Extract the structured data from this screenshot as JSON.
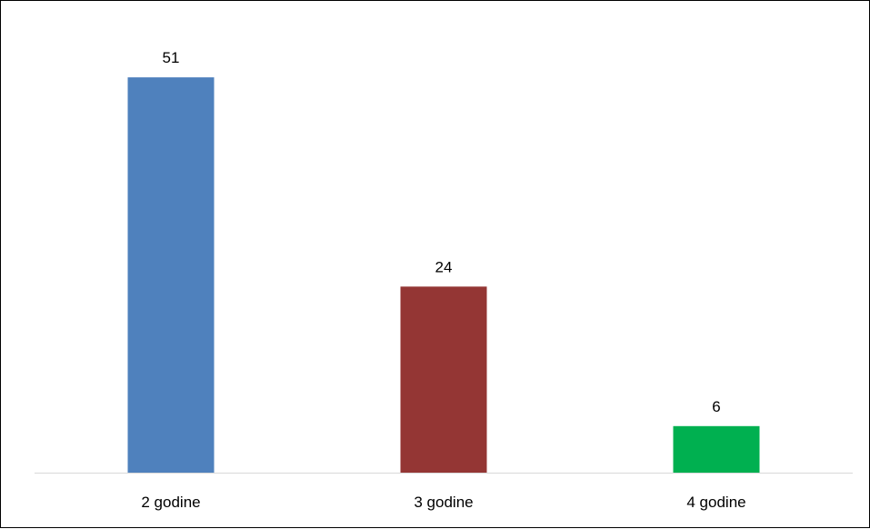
{
  "chart_data": {
    "type": "bar",
    "title": "",
    "xlabel": "",
    "ylabel": "",
    "categories": [
      "2 godine",
      "3 godine",
      "4 godine"
    ],
    "values": [
      51,
      24,
      6
    ],
    "ylim": [
      0,
      55
    ],
    "colors": [
      "#4F81BD",
      "#943634",
      "#00B050"
    ],
    "axis_color": "#D9D9D9",
    "grid": false,
    "legend": "none",
    "data_labels": true
  }
}
